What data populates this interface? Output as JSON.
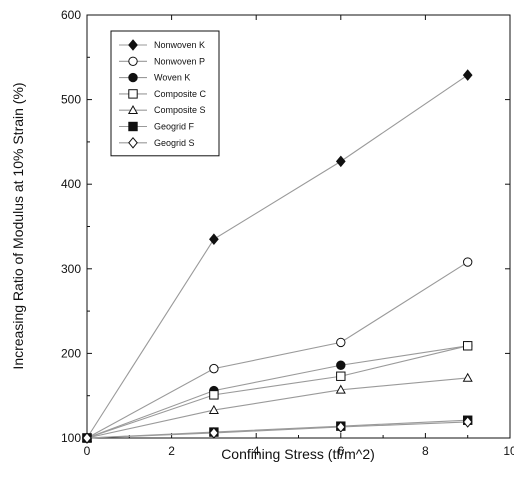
{
  "chart_data": {
    "type": "line",
    "title": "",
    "xlabel": "Confining Stress (tf/m^2)",
    "ylabel": "Increasing Ratio of Modulus at 10% Strain (%)",
    "xlim": [
      0,
      10
    ],
    "ylim": [
      100,
      600
    ],
    "xticks": [
      0,
      2,
      4,
      6,
      8,
      10
    ],
    "yticks": [
      100,
      200,
      300,
      400,
      500,
      600
    ],
    "grid": false,
    "legend_position": "top-left",
    "x": [
      0,
      3,
      6,
      9
    ],
    "series": [
      {
        "name": "Nonwoven K",
        "marker": "diamond-filled",
        "values": [
          100,
          335,
          427,
          529
        ]
      },
      {
        "name": "Nonwoven P",
        "marker": "circle-open",
        "values": [
          100,
          182,
          213,
          308
        ]
      },
      {
        "name": "Woven K",
        "marker": "circle-filled",
        "values": [
          100,
          156,
          186,
          209
        ]
      },
      {
        "name": "Composite C",
        "marker": "square-open",
        "values": [
          100,
          151,
          173,
          209
        ]
      },
      {
        "name": "Composite S",
        "marker": "triangle-open",
        "values": [
          100,
          133,
          157,
          171
        ]
      },
      {
        "name": "Geogrid F",
        "marker": "square-filled",
        "values": [
          100,
          107,
          114,
          121
        ]
      },
      {
        "name": "Geogrid S",
        "marker": "diamond-open",
        "values": [
          100,
          106,
          113,
          119
        ]
      }
    ]
  },
  "colors": {
    "line": "#9a9a9a",
    "marker": "#111111",
    "axis": "#111111"
  }
}
